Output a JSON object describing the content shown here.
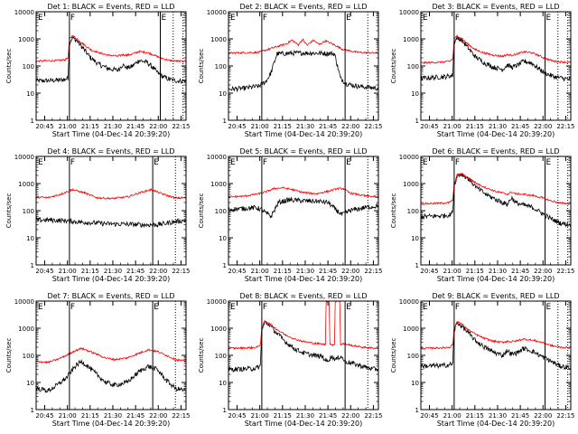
{
  "figure": {
    "x_axis_label": "Start Time (04-Dec-14 20:39:20)",
    "y_axis_label": "Counts/sec",
    "x_tick_labels": [
      "20:45",
      "21:00",
      "21:15",
      "21:30",
      "21:45",
      "22:00",
      "22:15"
    ],
    "y_tick_labels": [
      "1",
      "10",
      "100",
      "1000",
      "10000"
    ],
    "series_colors": {
      "events": "#000000",
      "lld": "#ff0000"
    },
    "flags": {
      "start": "F",
      "end": "E",
      "line_style_dotted": "dotted marker lines"
    }
  },
  "chart_data": [
    {
      "type": "line",
      "detector": 1,
      "title": "Det 1: BLACK = Events, RED = LLD",
      "x_unit": "minutes after 20:39:20",
      "xlim": [
        0,
        99
      ],
      "ylim": [
        1,
        10000
      ],
      "yscale": "log",
      "markers": {
        "solid": [
          22,
          82
        ],
        "dotted": [
          90.5,
          97
        ]
      },
      "series": [
        {
          "name": "BLACK = Events",
          "color": "#000000",
          "x": [
            0,
            15,
            19,
            21,
            22,
            24,
            27,
            31,
            36,
            42,
            48,
            54,
            57,
            60,
            63,
            68,
            73,
            76,
            82,
            88,
            94,
            99
          ],
          "y": [
            28,
            30,
            32,
            36,
            700,
            1100,
            850,
            450,
            200,
            110,
            80,
            70,
            110,
            85,
            95,
            160,
            140,
            100,
            45,
            32,
            28,
            28
          ]
        },
        {
          "name": "RED = LLD",
          "color": "#ff0000",
          "x": [
            0,
            15,
            19,
            21,
            22,
            24,
            27,
            31,
            36,
            42,
            48,
            54,
            57,
            60,
            63,
            68,
            73,
            76,
            82,
            88,
            94,
            99
          ],
          "y": [
            150,
            160,
            170,
            200,
            1000,
            1300,
            1000,
            650,
            400,
            300,
            250,
            230,
            260,
            250,
            270,
            340,
            320,
            280,
            200,
            160,
            150,
            150
          ]
        }
      ]
    },
    {
      "type": "line",
      "detector": 2,
      "title": "Det 2: BLACK = Events, RED = LLD",
      "x_unit": "minutes after 20:39:20",
      "xlim": [
        0,
        99
      ],
      "ylim": [
        1,
        10000
      ],
      "yscale": "log",
      "markers": {
        "solid": [
          22,
          77
        ],
        "dotted": [
          92
        ]
      },
      "series": [
        {
          "name": "BLACK = Events",
          "color": "#000000",
          "x": [
            0,
            10,
            20,
            25,
            28,
            32,
            45,
            55,
            66,
            70,
            72,
            74,
            78,
            85,
            99
          ],
          "y": [
            14,
            15,
            18,
            28,
            55,
            280,
            300,
            300,
            290,
            280,
            100,
            35,
            22,
            18,
            15
          ]
        },
        {
          "name": "RED = LLD",
          "color": "#ff0000",
          "x": [
            0,
            20,
            30,
            38,
            42,
            46,
            49,
            52,
            56,
            60,
            64,
            70,
            75,
            85,
            99
          ],
          "y": [
            300,
            320,
            480,
            650,
            900,
            600,
            950,
            580,
            900,
            620,
            850,
            600,
            420,
            320,
            300
          ]
        }
      ]
    },
    {
      "type": "line",
      "detector": 3,
      "title": "Det 3: BLACK = Events, RED = LLD",
      "x_unit": "minutes after 20:39:20",
      "xlim": [
        0,
        99
      ],
      "ylim": [
        1,
        10000
      ],
      "yscale": "log",
      "markers": {
        "solid": [
          22,
          82
        ],
        "dotted": [
          90.5,
          97
        ]
      },
      "series": [
        {
          "name": "BLACK = Events",
          "color": "#000000",
          "x": [
            0,
            15,
            19,
            21,
            22,
            24,
            27,
            31,
            36,
            42,
            48,
            54,
            57,
            60,
            63,
            68,
            73,
            76,
            82,
            88,
            94,
            99
          ],
          "y": [
            35,
            40,
            42,
            45,
            750,
            1100,
            900,
            480,
            220,
            130,
            90,
            75,
            110,
            90,
            100,
            150,
            130,
            95,
            55,
            40,
            35,
            32
          ]
        },
        {
          "name": "RED = LLD",
          "color": "#ff0000",
          "x": [
            0,
            15,
            19,
            21,
            22,
            24,
            27,
            31,
            36,
            42,
            48,
            54,
            57,
            60,
            63,
            68,
            73,
            76,
            82,
            88,
            94,
            99
          ],
          "y": [
            130,
            140,
            150,
            180,
            950,
            1300,
            1000,
            650,
            400,
            300,
            250,
            230,
            260,
            250,
            270,
            330,
            310,
            270,
            190,
            150,
            140,
            135
          ]
        }
      ]
    },
    {
      "type": "line",
      "detector": 4,
      "title": "Det 4: BLACK = Events, RED = LLD",
      "x_unit": "minutes after 20:39:20",
      "xlim": [
        0,
        99
      ],
      "ylim": [
        1,
        10000
      ],
      "yscale": "log",
      "markers": {
        "solid": [
          22,
          77
        ],
        "dotted": [
          92
        ]
      },
      "series": [
        {
          "name": "BLACK = Events",
          "color": "#000000",
          "x": [
            0,
            10,
            20,
            30,
            40,
            50,
            60,
            70,
            80,
            90,
            99
          ],
          "y": [
            45,
            45,
            42,
            38,
            35,
            32,
            32,
            30,
            30,
            38,
            45
          ]
        },
        {
          "name": "RED = LLD",
          "color": "#ff0000",
          "x": [
            0,
            8,
            16,
            24,
            32,
            40,
            50,
            60,
            68,
            76,
            84,
            92,
            99
          ],
          "y": [
            320,
            300,
            400,
            600,
            450,
            300,
            280,
            320,
            450,
            600,
            400,
            290,
            300
          ]
        }
      ]
    },
    {
      "type": "line",
      "detector": 5,
      "title": "Det 5: BLACK = Events, RED = LLD",
      "x_unit": "minutes after 20:39:20",
      "xlim": [
        0,
        99
      ],
      "ylim": [
        1,
        10000
      ],
      "yscale": "log",
      "markers": {
        "solid": [
          22,
          77
        ],
        "dotted": [
          92
        ]
      },
      "series": [
        {
          "name": "BLACK = Events",
          "color": "#000000",
          "x": [
            0,
            10,
            18,
            22,
            25,
            28,
            33,
            40,
            50,
            60,
            66,
            70,
            75,
            80,
            90,
            99
          ],
          "y": [
            110,
            120,
            130,
            110,
            80,
            60,
            200,
            250,
            230,
            220,
            200,
            120,
            70,
            100,
            130,
            150
          ]
        },
        {
          "name": "RED = LLD",
          "color": "#ff0000",
          "x": [
            0,
            10,
            20,
            25,
            30,
            36,
            42,
            50,
            58,
            66,
            72,
            76,
            80,
            90,
            99
          ],
          "y": [
            320,
            340,
            420,
            500,
            650,
            700,
            600,
            460,
            420,
            520,
            650,
            650,
            450,
            350,
            320
          ]
        }
      ]
    },
    {
      "type": "line",
      "detector": 6,
      "title": "Det 6: BLACK = Events, RED = LLD",
      "x_unit": "minutes after 20:39:20",
      "xlim": [
        0,
        99
      ],
      "ylim": [
        1,
        10000
      ],
      "yscale": "log",
      "markers": {
        "solid": [
          22,
          82
        ],
        "dotted": [
          90.5,
          97
        ]
      },
      "series": [
        {
          "name": "BLACK = Events",
          "color": "#000000",
          "x": [
            0,
            15,
            19,
            21,
            22,
            24,
            27,
            32,
            37,
            43,
            50,
            54,
            57,
            60,
            63,
            68,
            74,
            80,
            86,
            92,
            99
          ],
          "y": [
            60,
            65,
            70,
            90,
            800,
            2000,
            2200,
            1400,
            700,
            400,
            250,
            200,
            170,
            300,
            190,
            160,
            130,
            80,
            50,
            35,
            30
          ]
        },
        {
          "name": "RED = LLD",
          "color": "#ff0000",
          "x": [
            0,
            15,
            19,
            21,
            22,
            24,
            27,
            32,
            37,
            43,
            50,
            54,
            57,
            60,
            63,
            68,
            74,
            80,
            86,
            92,
            99
          ],
          "y": [
            180,
            190,
            200,
            250,
            1000,
            2100,
            2300,
            1500,
            1000,
            700,
            500,
            450,
            400,
            480,
            420,
            400,
            360,
            300,
            230,
            190,
            180
          ]
        }
      ]
    },
    {
      "type": "line",
      "detector": 7,
      "title": "Det 7: BLACK = Events, RED = LLD",
      "x_unit": "minutes after 20:39:20",
      "xlim": [
        0,
        99
      ],
      "ylim": [
        1,
        10000
      ],
      "yscale": "log",
      "markers": {
        "solid": [
          22,
          77
        ],
        "dotted": [
          92
        ]
      },
      "series": [
        {
          "name": "BLACK = Events",
          "color": "#000000",
          "x": [
            0,
            8,
            14,
            20,
            26,
            30,
            34,
            40,
            46,
            52,
            60,
            68,
            74,
            80,
            86,
            92,
            99
          ],
          "y": [
            6,
            5,
            8,
            15,
            40,
            60,
            40,
            20,
            10,
            8,
            10,
            25,
            40,
            30,
            12,
            6,
            5
          ]
        },
        {
          "name": "RED = LLD",
          "color": "#ff0000",
          "x": [
            0,
            8,
            14,
            20,
            26,
            30,
            34,
            40,
            46,
            52,
            60,
            68,
            74,
            80,
            86,
            92,
            99
          ],
          "y": [
            60,
            55,
            70,
            100,
            150,
            180,
            150,
            110,
            80,
            70,
            80,
            120,
            160,
            140,
            100,
            70,
            60
          ]
        }
      ]
    },
    {
      "type": "line",
      "detector": 8,
      "title": "Det 8: BLACK = Events, RED = LLD",
      "x_unit": "minutes after 20:39:20",
      "xlim": [
        0,
        99
      ],
      "ylim": [
        1,
        10000
      ],
      "yscale": "log",
      "markers": {
        "solid": [
          22,
          77
        ],
        "dotted": [
          92
        ]
      },
      "series": [
        {
          "name": "BLACK = Events",
          "color": "#000000",
          "x": [
            0,
            15,
            19,
            21,
            22,
            24,
            27,
            32,
            38,
            44,
            50,
            56,
            62,
            65,
            68,
            71,
            74,
            77,
            82,
            88,
            94,
            99
          ],
          "y": [
            30,
            32,
            35,
            40,
            800,
            1700,
            1300,
            650,
            300,
            170,
            120,
            100,
            90,
            60,
            90,
            70,
            95,
            60,
            50,
            40,
            32,
            30
          ]
        },
        {
          "name": "RED = LLD",
          "color": "#ff0000",
          "x": [
            0,
            15,
            19,
            21,
            22,
            24,
            27,
            32,
            38,
            44,
            50,
            56,
            62,
            64,
            64.5,
            66.5,
            67,
            70,
            70.5,
            73.5,
            74,
            76,
            80,
            86,
            92,
            99
          ],
          "y": [
            180,
            190,
            200,
            250,
            1000,
            1900,
            1500,
            900,
            550,
            400,
            320,
            280,
            260,
            250,
            10000,
            10000,
            250,
            250,
            10000,
            10000,
            250,
            270,
            240,
            210,
            190,
            180
          ]
        }
      ]
    },
    {
      "type": "line",
      "detector": 9,
      "title": "Det 9: BLACK = Events, RED = LLD",
      "x_unit": "minutes after 20:39:20",
      "xlim": [
        0,
        99
      ],
      "ylim": [
        1,
        10000
      ],
      "yscale": "log",
      "markers": {
        "solid": [
          22,
          82
        ],
        "dotted": [
          90.5,
          97
        ]
      },
      "series": [
        {
          "name": "BLACK = Events",
          "color": "#000000",
          "x": [
            0,
            15,
            19,
            21,
            22,
            24,
            27,
            31,
            36,
            42,
            48,
            54,
            57,
            60,
            63,
            68,
            74,
            80,
            86,
            92,
            99
          ],
          "y": [
            40,
            42,
            45,
            50,
            800,
            1600,
            1200,
            700,
            350,
            200,
            130,
            100,
            150,
            110,
            120,
            180,
            140,
            90,
            60,
            40,
            35
          ]
        },
        {
          "name": "RED = LLD",
          "color": "#ff0000",
          "x": [
            0,
            15,
            19,
            21,
            22,
            24,
            27,
            31,
            36,
            42,
            48,
            54,
            57,
            60,
            63,
            68,
            74,
            80,
            86,
            92,
            99
          ],
          "y": [
            180,
            190,
            200,
            250,
            1000,
            1800,
            1400,
            900,
            600,
            420,
            330,
            300,
            330,
            320,
            340,
            400,
            360,
            300,
            230,
            200,
            190
          ]
        }
      ]
    }
  ]
}
